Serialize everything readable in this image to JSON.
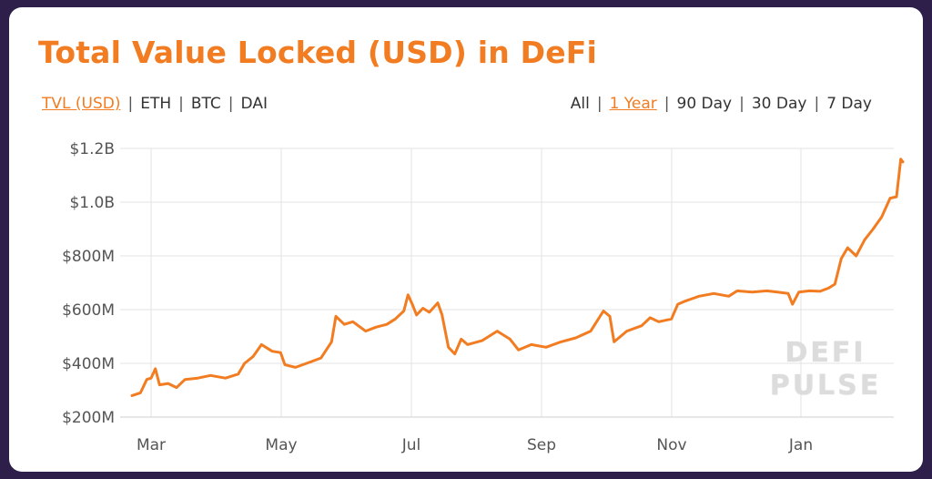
{
  "title": "Total Value Locked (USD) in DeFi",
  "metric_tabs": [
    {
      "label": "TVL (USD)",
      "active": true
    },
    {
      "label": "ETH",
      "active": false
    },
    {
      "label": "BTC",
      "active": false
    },
    {
      "label": "DAI",
      "active": false
    }
  ],
  "range_tabs": [
    {
      "label": "All",
      "active": false
    },
    {
      "label": "1 Year",
      "active": true
    },
    {
      "label": "90 Day",
      "active": false
    },
    {
      "label": "30 Day",
      "active": false
    },
    {
      "label": "7 Day",
      "active": false
    }
  ],
  "separator": "|",
  "watermark": {
    "line1": "DEFI",
    "line2": "PULSE"
  },
  "colors": {
    "accent": "#f27c21",
    "background": "#2e1f4a",
    "grid": "#e3e3e3",
    "axis_text": "#555555"
  },
  "chart_data": {
    "type": "line",
    "title": "Total Value Locked (USD) in DeFi",
    "xlabel": "",
    "ylabel": "",
    "x_ticks": [
      "Mar",
      "May",
      "Jul",
      "Sep",
      "Nov",
      "Jan"
    ],
    "y_ticks": [
      "$200M",
      "$400M",
      "$600M",
      "$800M",
      "$1.0B",
      "$1.2B"
    ],
    "ylim": [
      200,
      1200
    ],
    "y_unit": "USD millions",
    "grid": true,
    "legend": "none",
    "series": [
      {
        "color": "#f27c21",
        "points": [
          [
            "Feb 20",
            280
          ],
          [
            "Feb 24",
            290
          ],
          [
            "Feb 27",
            340
          ],
          [
            "Mar 1",
            345
          ],
          [
            "Mar 3",
            380
          ],
          [
            "Mar 5",
            320
          ],
          [
            "Mar 9",
            325
          ],
          [
            "Mar 13",
            310
          ],
          [
            "Mar 17",
            340
          ],
          [
            "Mar 23",
            345
          ],
          [
            "Mar 29",
            355
          ],
          [
            "Apr 5",
            345
          ],
          [
            "Apr 11",
            360
          ],
          [
            "Apr 14",
            400
          ],
          [
            "Apr 18",
            425
          ],
          [
            "Apr 22",
            470
          ],
          [
            "Apr 27",
            445
          ],
          [
            "May 1",
            440
          ],
          [
            "May 3",
            395
          ],
          [
            "May 8",
            385
          ],
          [
            "May 15",
            405
          ],
          [
            "May 20",
            420
          ],
          [
            "May 25",
            480
          ],
          [
            "May 27",
            575
          ],
          [
            "May 31",
            545
          ],
          [
            "Jun 4",
            555
          ],
          [
            "Jun 10",
            520
          ],
          [
            "Jun 15",
            535
          ],
          [
            "Jun 20",
            545
          ],
          [
            "Jun 24",
            565
          ],
          [
            "Jun 28",
            595
          ],
          [
            "Jun 30",
            655
          ],
          [
            "Jul 2",
            620
          ],
          [
            "Jul 4",
            580
          ],
          [
            "Jul 7",
            605
          ],
          [
            "Jul 10",
            590
          ],
          [
            "Jul 14",
            625
          ],
          [
            "Jul 16",
            580
          ],
          [
            "Jul 19",
            460
          ],
          [
            "Jul 22",
            435
          ],
          [
            "Jul 25",
            490
          ],
          [
            "Jul 28",
            470
          ],
          [
            "Aug 4",
            485
          ],
          [
            "Aug 11",
            520
          ],
          [
            "Aug 17",
            490
          ],
          [
            "Aug 21",
            450
          ],
          [
            "Aug 27",
            470
          ],
          [
            "Sep 3",
            460
          ],
          [
            "Sep 10",
            480
          ],
          [
            "Sep 17",
            495
          ],
          [
            "Sep 24",
            520
          ],
          [
            "Sep 30",
            595
          ],
          [
            "Oct 3",
            575
          ],
          [
            "Oct 5",
            480
          ],
          [
            "Oct 11",
            520
          ],
          [
            "Oct 18",
            540
          ],
          [
            "Oct 22",
            570
          ],
          [
            "Oct 26",
            555
          ],
          [
            "Nov 1",
            565
          ],
          [
            "Nov 4",
            620
          ],
          [
            "Nov 7",
            630
          ],
          [
            "Nov 14",
            650
          ],
          [
            "Nov 21",
            660
          ],
          [
            "Nov 28",
            650
          ],
          [
            "Dec 2",
            670
          ],
          [
            "Dec 9",
            665
          ],
          [
            "Dec 16",
            670
          ],
          [
            "Dec 21",
            665
          ],
          [
            "Dec 26",
            660
          ],
          [
            "Dec 28",
            620
          ],
          [
            "Dec 31",
            665
          ],
          [
            "Jan 5",
            670
          ],
          [
            "Jan 10",
            668
          ],
          [
            "Jan 14",
            680
          ],
          [
            "Jan 17",
            695
          ],
          [
            "Jan 20",
            790
          ],
          [
            "Jan 23",
            830
          ],
          [
            "Jan 27",
            800
          ],
          [
            "Jan 31",
            860
          ],
          [
            "Feb 4",
            900
          ],
          [
            "Feb 8",
            945
          ],
          [
            "Feb 12",
            1015
          ],
          [
            "Feb 15",
            1020
          ],
          [
            "Feb 17",
            1160
          ],
          [
            "Feb 18",
            1150
          ]
        ]
      }
    ]
  }
}
